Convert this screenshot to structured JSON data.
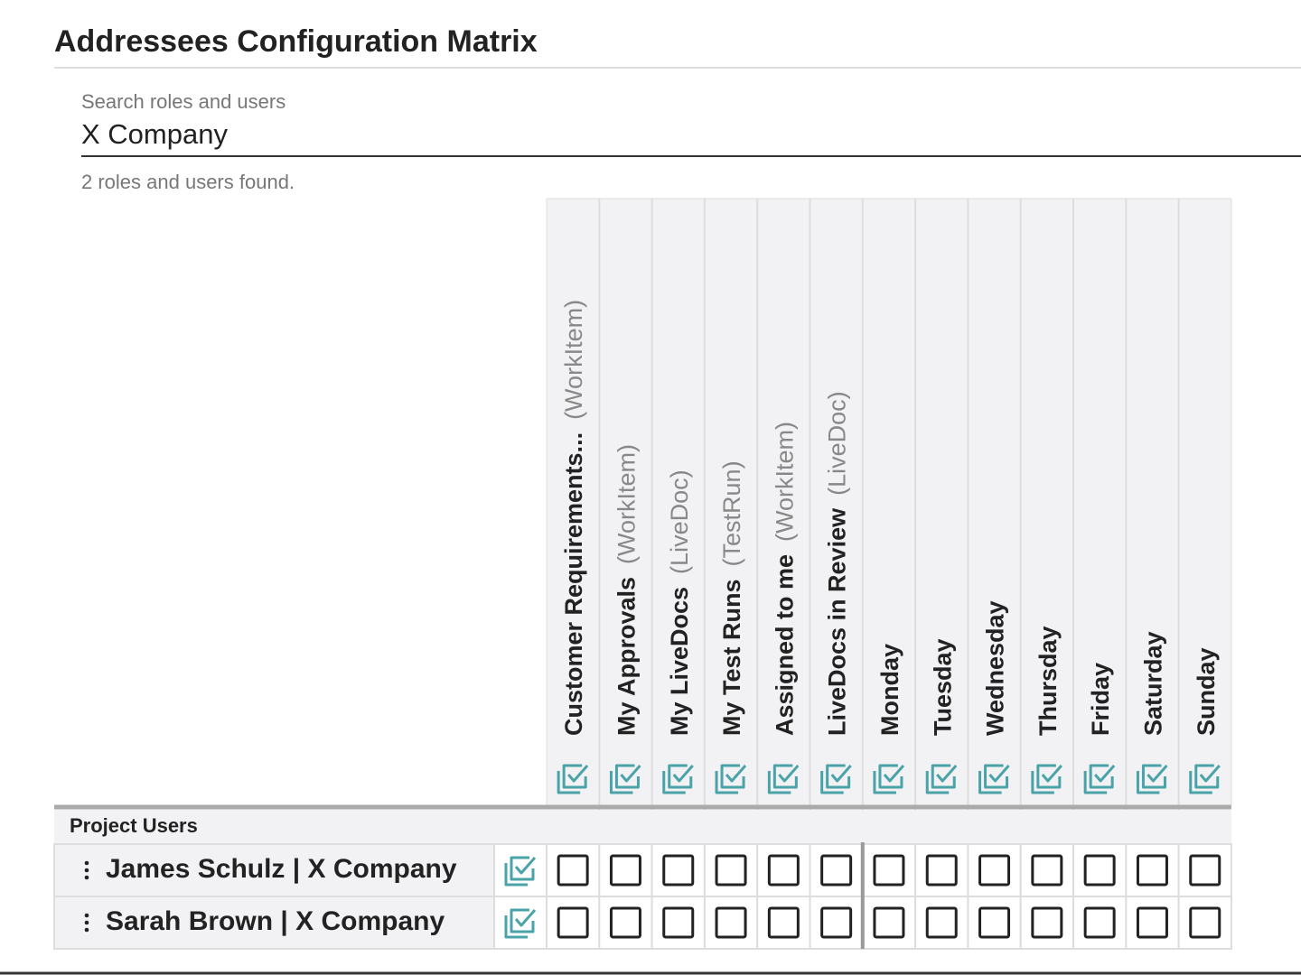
{
  "title": "Addressees Configuration Matrix",
  "search": {
    "label": "Search roles and users",
    "value": "X Company",
    "status": "2 roles and users found."
  },
  "columns": [
    {
      "name": "Customer Requirements...",
      "type": "(WorkItem)"
    },
    {
      "name": "My Approvals",
      "type": "(WorkItem)"
    },
    {
      "name": "My LiveDocs",
      "type": "(LiveDoc)"
    },
    {
      "name": "My Test Runs",
      "type": "(TestRun)"
    },
    {
      "name": "Assigned to me",
      "type": "(WorkItem)"
    },
    {
      "name": "LiveDocs in Review",
      "type": "(LiveDoc)"
    },
    {
      "name": "Monday"
    },
    {
      "name": "Tuesday"
    },
    {
      "name": "Wednesday"
    },
    {
      "name": "Thursday"
    },
    {
      "name": "Friday"
    },
    {
      "name": "Saturday"
    },
    {
      "name": "Sunday"
    }
  ],
  "group": "Project Users",
  "rows": [
    "James Schulz | X Company",
    "Sarah Brown | X Company"
  ]
}
